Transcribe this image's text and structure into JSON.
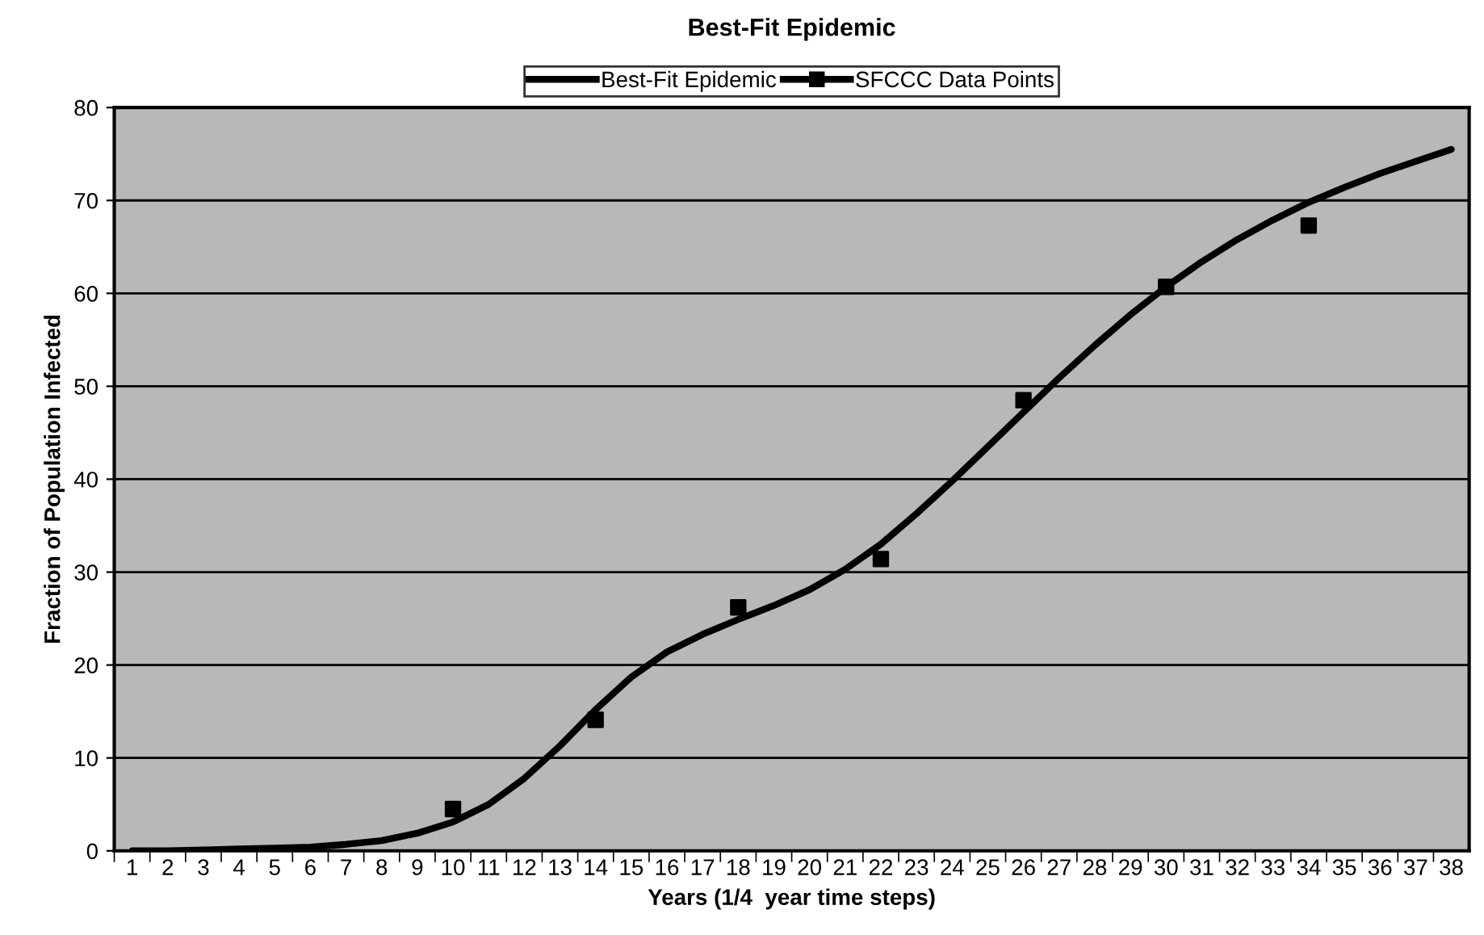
{
  "chart_data": {
    "type": "line",
    "title": "Best-Fit Epidemic",
    "xlabel": "Years (1/4  year time steps)",
    "ylabel": "Fraction of Population Infected",
    "categories": [
      "1",
      "2",
      "3",
      "4",
      "5",
      "6",
      "7",
      "8",
      "9",
      "10",
      "11",
      "12",
      "13",
      "14",
      "15",
      "16",
      "17",
      "18",
      "19",
      "20",
      "21",
      "22",
      "23",
      "24",
      "25",
      "26",
      "27",
      "28",
      "29",
      "30",
      "31",
      "32",
      "33",
      "34",
      "35",
      "36",
      "37",
      "38"
    ],
    "series": [
      {
        "name": "Best-Fit Epidemic",
        "color": "#000000",
        "marker": "none",
        "values": [
          0,
          0,
          0.1,
          0.2,
          0.3,
          0.4,
          0.7,
          1.1,
          1.9,
          3.1,
          5,
          7.8,
          11.3,
          15.2,
          18.7,
          21.4,
          23.3,
          24.9,
          26.4,
          28.1,
          30.3,
          33,
          36.3,
          39.8,
          43.5,
          47.2,
          50.9,
          54.4,
          57.7,
          60.7,
          63.4,
          65.8,
          67.9,
          69.8,
          71.4,
          72.9,
          74.2,
          75.5
        ]
      },
      {
        "name": "SFCCC Data Points",
        "color": "#000000",
        "type": "scatter",
        "marker": "square",
        "values": [
          null,
          null,
          null,
          null,
          null,
          null,
          null,
          null,
          null,
          4.5,
          null,
          null,
          null,
          14.1,
          null,
          null,
          null,
          26.2,
          null,
          null,
          null,
          31.4,
          null,
          null,
          null,
          48.5,
          null,
          null,
          null,
          60.7,
          null,
          null,
          null,
          67.3,
          null,
          null,
          null,
          null
        ]
      }
    ],
    "ylim": [
      0,
      80
    ],
    "yticks": [
      0,
      10,
      20,
      30,
      40,
      50,
      60,
      70,
      80
    ],
    "grid": "y",
    "legend": "top"
  }
}
